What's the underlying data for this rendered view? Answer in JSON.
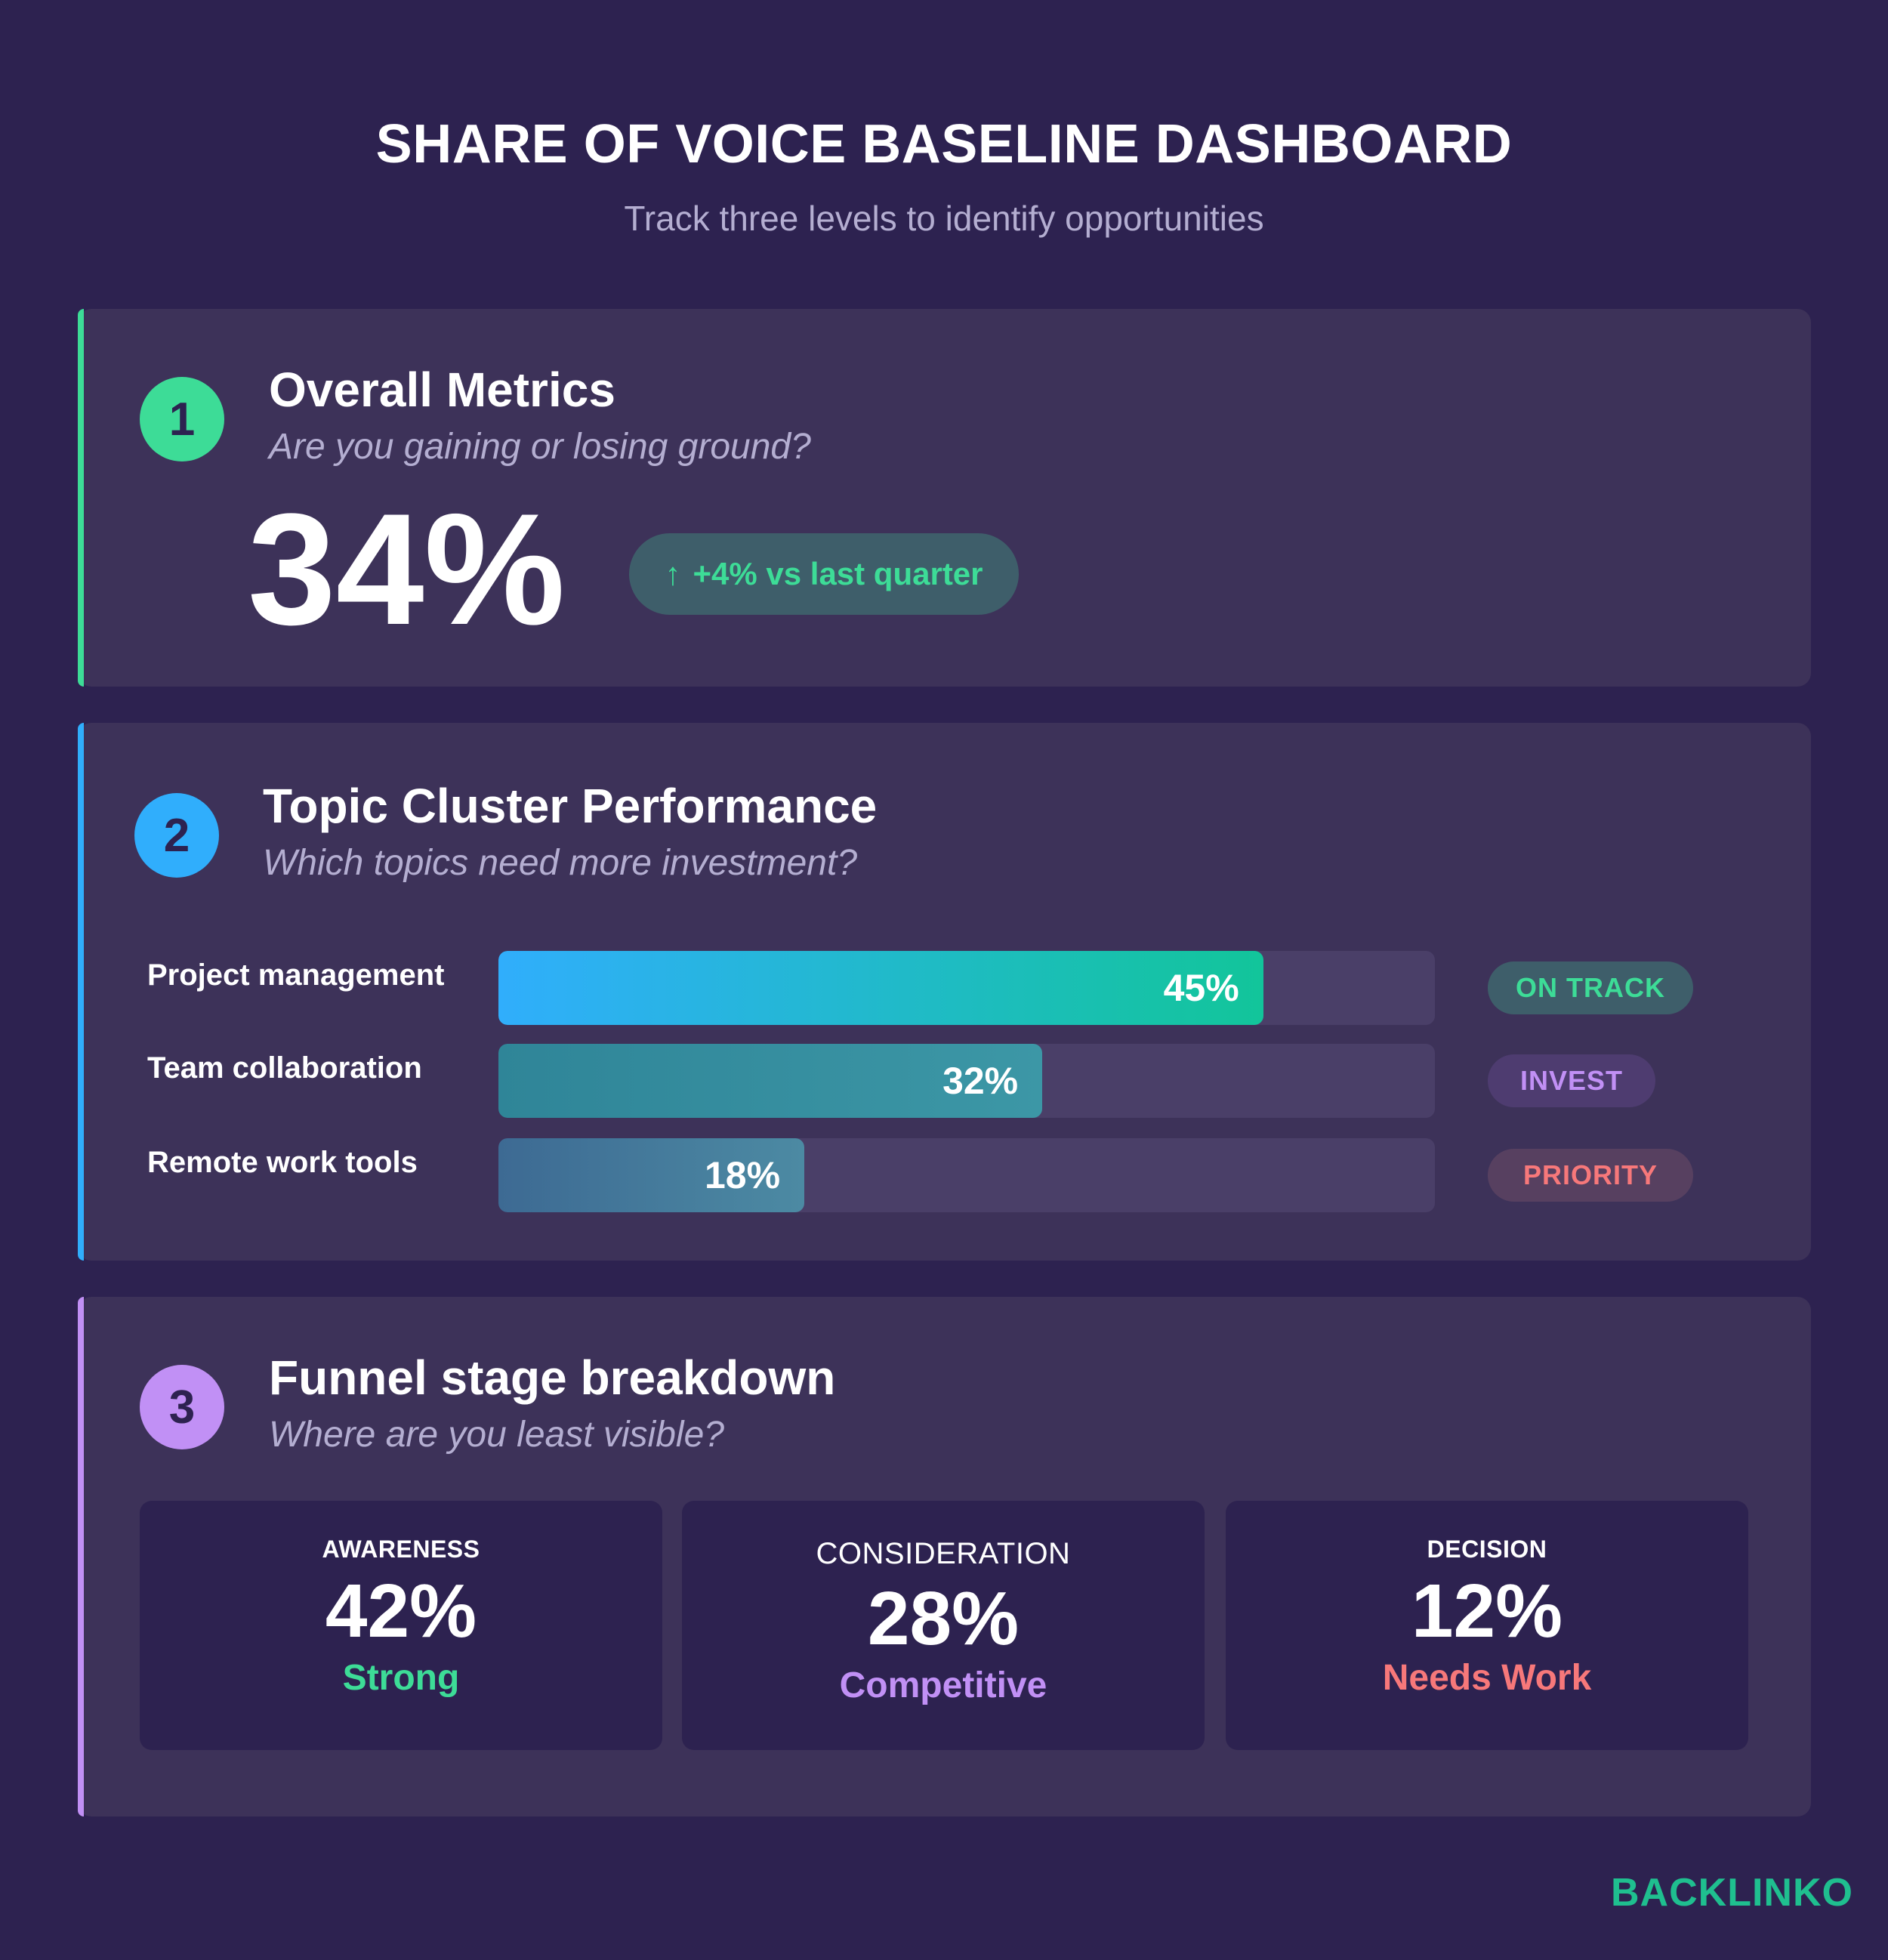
{
  "header": {
    "title": "SHARE OF VOICE BASELINE DASHBOARD",
    "subtitle": "Track three levels to identify opportunities"
  },
  "overall": {
    "number": "1",
    "title": "Overall Metrics",
    "question": "Are you gaining or losing ground?",
    "value": "34%",
    "change": "+4% vs last quarter",
    "change_icon": "arrow-up-icon"
  },
  "topics": {
    "number": "2",
    "title": "Topic Cluster Performance",
    "question": "Which topics need more investment?",
    "rows": [
      {
        "label": "Project management",
        "percent": 45,
        "value": "45%",
        "status": "ON TRACK",
        "status_color": "#3ddc97",
        "status_bg": "#3e5e6a"
      },
      {
        "label": "Team collaboration",
        "percent": 32,
        "value": "32%",
        "status": "INVEST",
        "status_color": "#c190f5",
        "status_bg": "#4e3c70"
      },
      {
        "label": "Remote work tools",
        "percent": 18,
        "value": "18%",
        "status": "PRIORITY",
        "status_color": "#f7787a",
        "status_bg": "#574060"
      }
    ]
  },
  "funnel": {
    "number": "3",
    "title": "Funnel stage breakdown",
    "question": "Where are you least visible?",
    "stages": [
      {
        "label": "AWARENESS",
        "value": "42%",
        "status": "Strong",
        "status_color": "#3ddc97"
      },
      {
        "label": "CONSIDERATION",
        "value": "28%",
        "status": "Competitive",
        "status_color": "#c190f5"
      },
      {
        "label": "DECISION",
        "value": "12%",
        "status": "Needs Work",
        "status_color": "#f7787a"
      }
    ]
  },
  "brand": {
    "logo": "BACKLINKO"
  },
  "colors": {
    "green": "#3ddc97",
    "blue": "#30aefc",
    "purple": "#c190f5",
    "red": "#f7787a"
  }
}
